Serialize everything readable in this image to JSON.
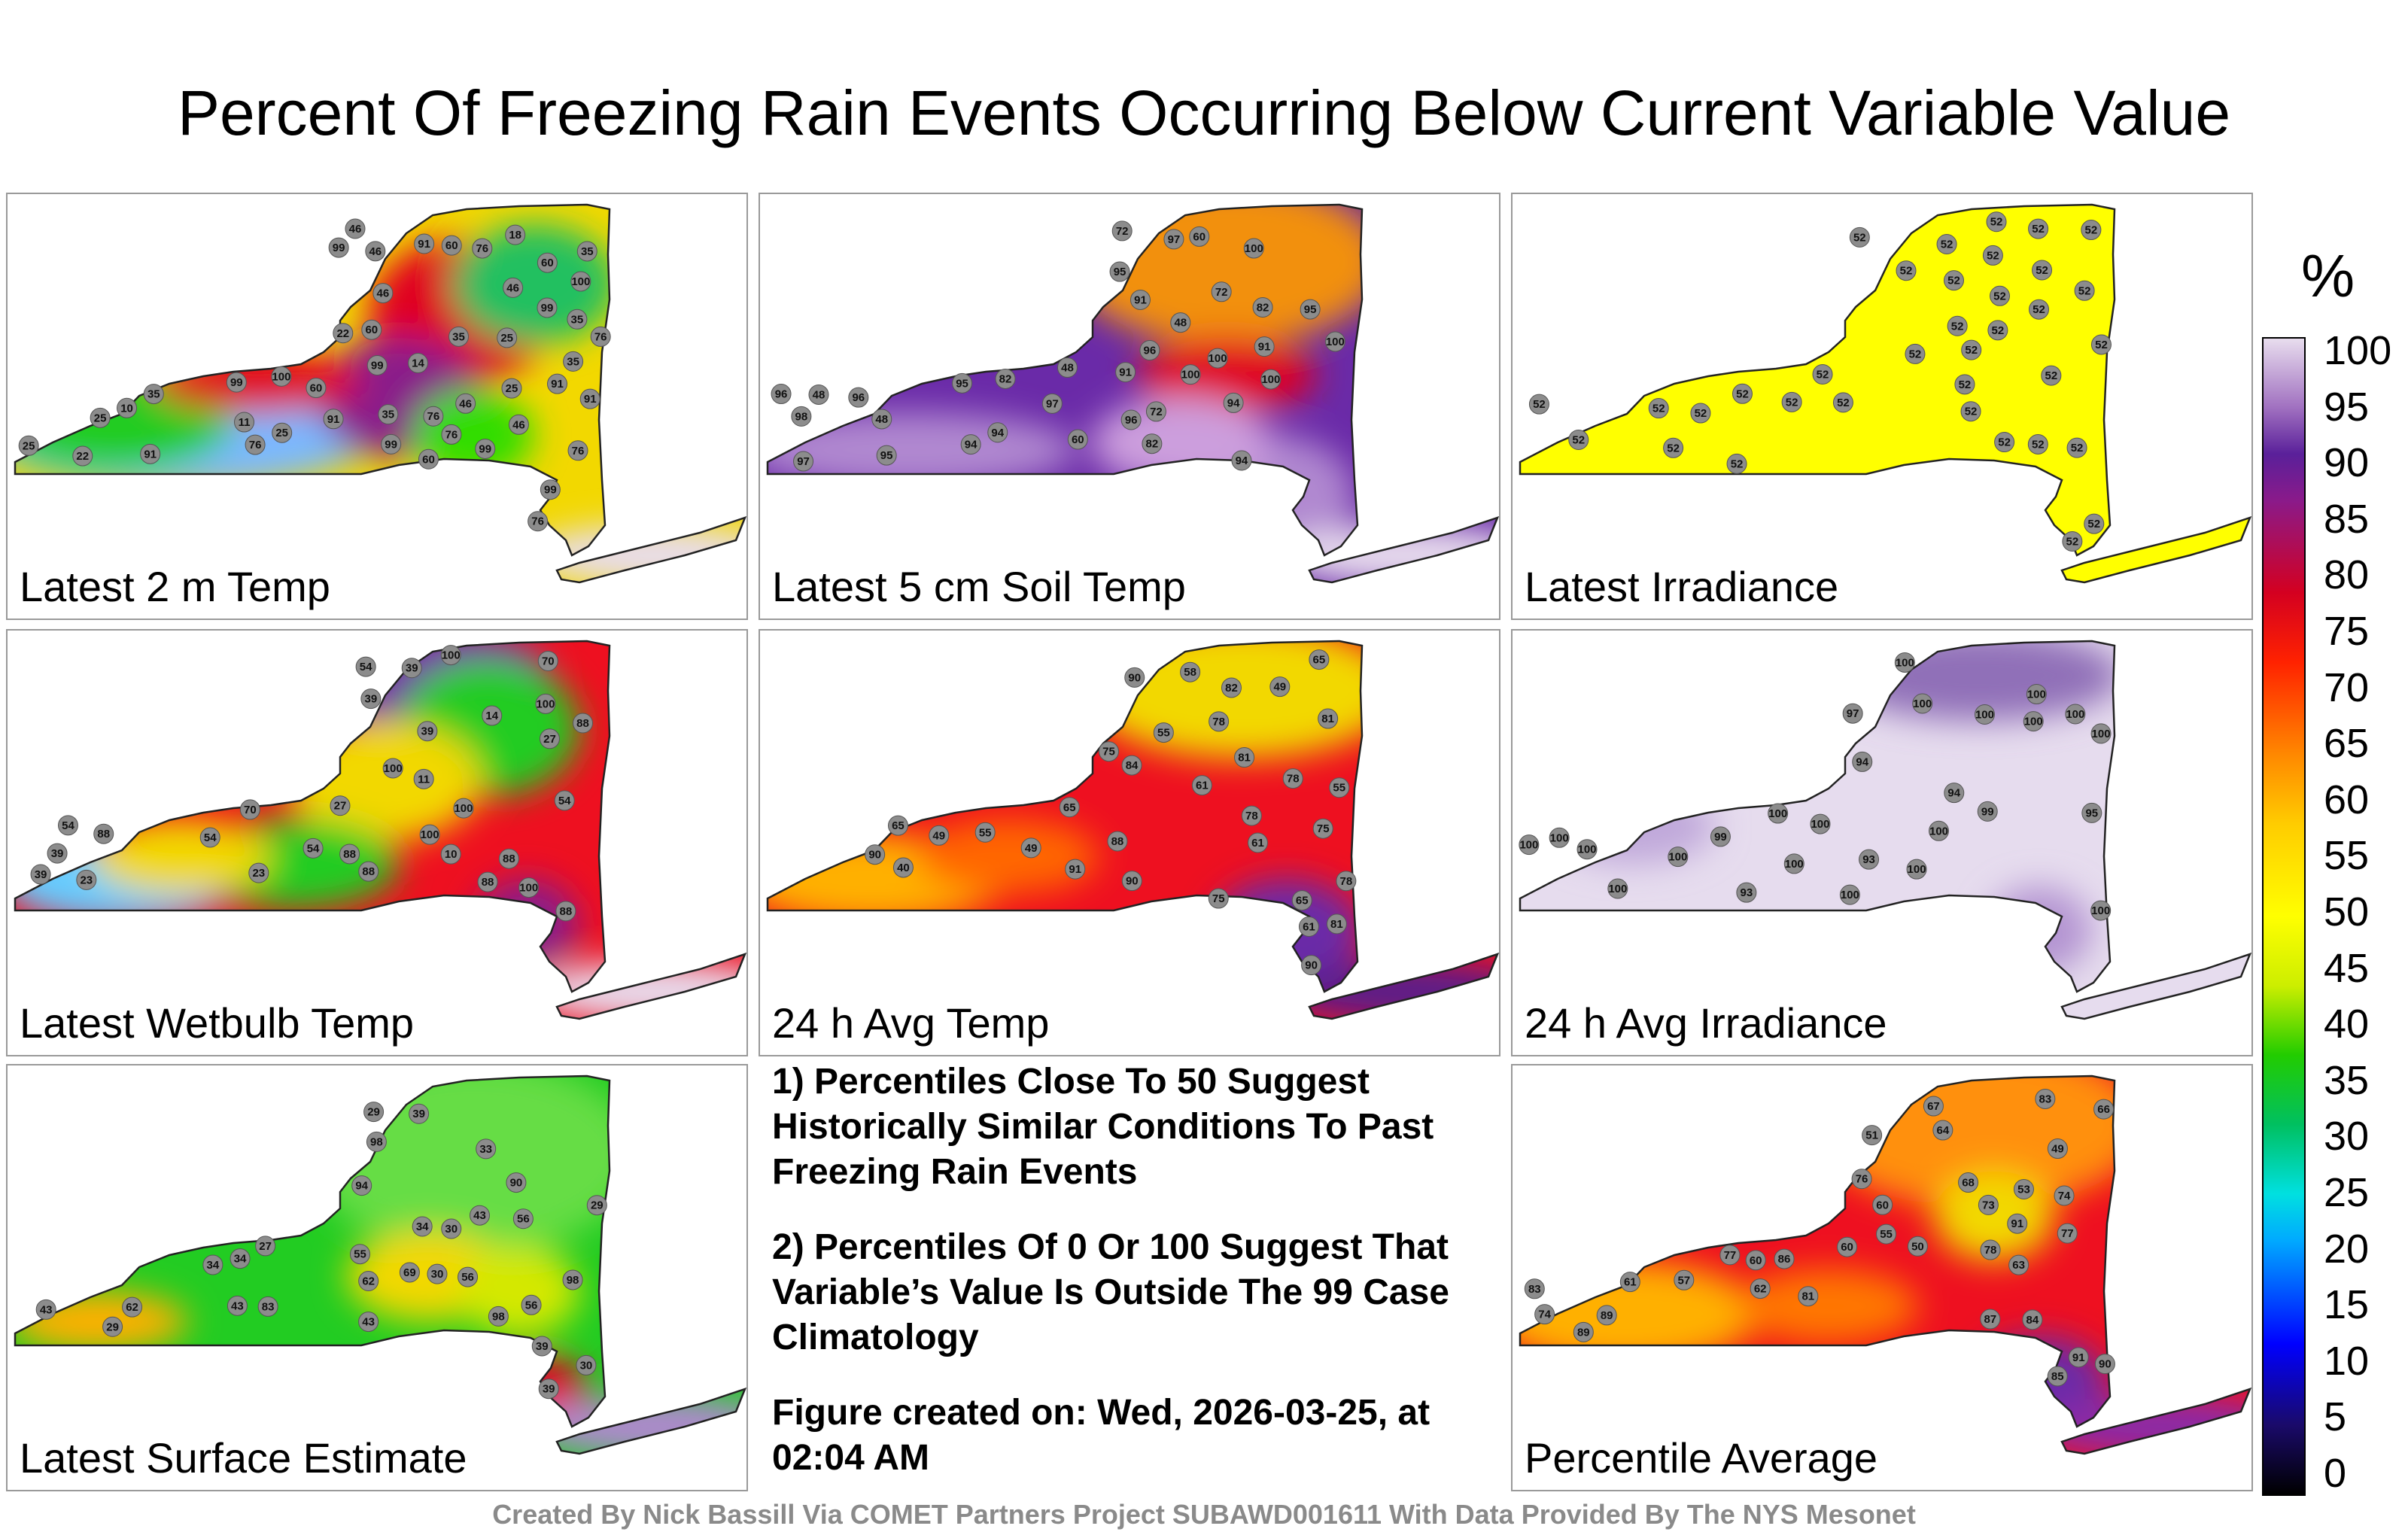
{
  "title": "Percent Of Freezing Rain Events Occurring Below Current Variable Value",
  "panels": [
    {
      "label": "Latest 2 m Temp",
      "scheme": "temp",
      "stations": [
        76,
        60,
        99,
        46,
        22,
        22,
        76,
        76,
        35,
        99,
        91,
        91,
        99,
        35,
        46,
        35,
        76,
        60,
        46,
        76,
        76,
        91,
        99,
        46,
        25,
        25,
        91,
        60,
        60,
        46,
        25,
        25,
        25,
        18,
        14,
        10,
        35,
        76,
        35,
        60,
        46,
        91,
        35,
        11,
        99,
        99,
        99,
        100,
        100
      ]
    },
    {
      "label": "Latest 5 cm Soil Temp",
      "scheme": "soil",
      "stations": [
        60,
        72,
        60,
        48,
        95,
        82,
        48,
        48,
        82,
        48,
        72,
        72,
        94,
        95,
        91,
        91,
        94,
        96,
        96,
        94,
        91,
        95,
        95,
        82,
        94,
        97,
        96,
        96,
        97,
        97,
        98,
        100,
        100,
        100,
        100,
        100
      ]
    },
    {
      "label": "Latest Irradiance",
      "scheme": "irr",
      "stations": [
        52,
        52,
        52,
        52,
        52,
        52,
        52,
        52,
        52,
        52,
        52,
        52,
        52,
        52,
        52,
        52,
        52,
        52,
        52,
        52,
        52,
        52,
        52,
        52,
        52,
        52,
        52,
        52,
        52,
        52,
        52,
        52,
        52,
        52,
        52
      ]
    },
    {
      "label": "Latest Wetbulb Temp",
      "scheme": "wet",
      "stations": [
        88,
        70,
        54,
        100,
        23,
        23,
        88,
        88,
        100,
        39,
        88,
        88,
        54,
        54,
        88,
        39,
        27,
        39,
        14,
        10,
        27,
        54,
        100,
        70,
        88,
        39,
        11,
        39,
        54,
        100,
        100,
        100
      ]
    },
    {
      "label": "24 h Avg Temp",
      "scheme": "avg",
      "stations": [
        61,
        58,
        55,
        78,
        65,
        49,
        40,
        49,
        81,
        75,
        75,
        81,
        78,
        78,
        75,
        65,
        65,
        61,
        55,
        49,
        61,
        55,
        65,
        82,
        78,
        81,
        88,
        84,
        90,
        90,
        90,
        91,
        90
      ]
    },
    {
      "label": "24 h Avg Irradiance",
      "scheme": "avgirr",
      "stations": [
        93,
        94,
        95,
        99,
        100,
        100,
        100,
        100,
        94,
        93,
        100,
        100,
        100,
        100,
        100,
        97,
        99,
        100,
        100,
        100,
        100,
        100,
        100,
        100,
        100,
        100,
        100
      ]
    },
    {
      "label": "Latest Surface Estimate",
      "scheme": "surf",
      "stations": [
        39,
        34,
        33,
        39,
        43,
        56,
        29,
        30,
        43,
        55,
        83,
        62,
        56,
        43,
        43,
        39,
        34,
        30,
        29,
        62,
        69,
        90,
        98,
        98,
        98,
        94,
        56,
        27,
        29,
        30,
        34
      ]
    },
    {
      "label": "Percentile Average",
      "scheme": "pavg",
      "stations": [
        67,
        61,
        74,
        68,
        49,
        57,
        77,
        74,
        51,
        60,
        85,
        87,
        78,
        77,
        76,
        81,
        83,
        73,
        66,
        64,
        89,
        84,
        62,
        60,
        50,
        53,
        55,
        60,
        63,
        83,
        91,
        86,
        90,
        91,
        89
      ]
    }
  ],
  "notes": [
    "1) Percentiles Close To 50 Suggest Historically Similar Conditions To Past Freezing Rain Events",
    "2) Percentiles Of 0 Or 100 Suggest That Variable’s Value Is Outside The 99 Case Climatology",
    "Figure created on: Wed, 2026-03-25, at 02:04 AM"
  ],
  "colorbar": {
    "unit": "%",
    "ticks": [
      "100",
      "95",
      "90",
      "85",
      "80",
      "75",
      "70",
      "65",
      "60",
      "55",
      "50",
      "45",
      "40",
      "35",
      "30",
      "25",
      "20",
      "15",
      "10",
      "5",
      "0"
    ]
  },
  "credit": "Created By Nick Bassill Via COMET Partners Project SUBAWD001611 With Data Provided By The NYS Mesonet"
}
